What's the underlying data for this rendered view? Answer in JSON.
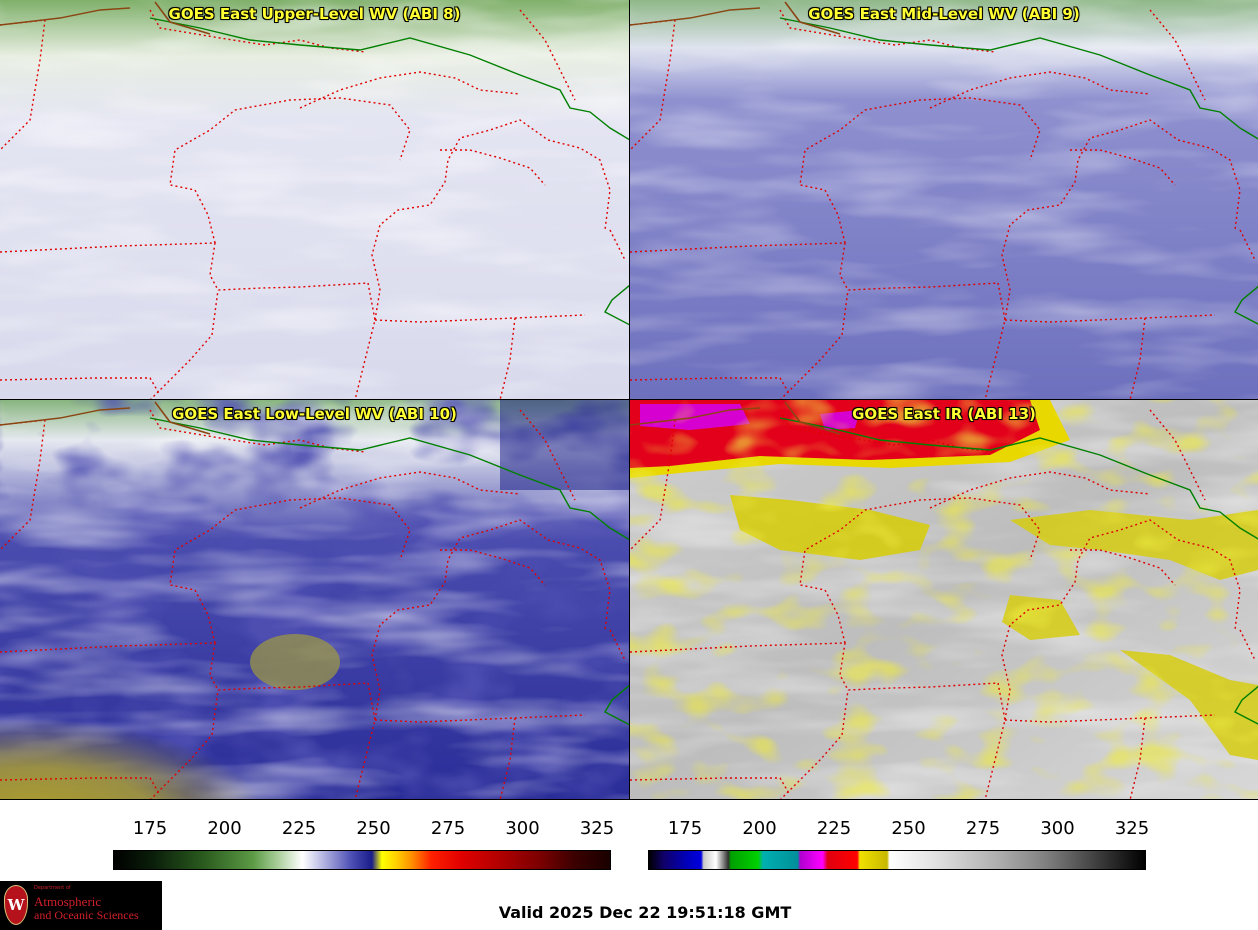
{
  "panels": [
    {
      "title": "GOES East Upper-Level WV (ABI 8)"
    },
    {
      "title": "GOES East Mid-Level WV (ABI 9)"
    },
    {
      "title": "GOES East Low-Level WV (ABI 10)"
    },
    {
      "title": "GOES East IR (ABI 13)"
    }
  ],
  "colorbars": {
    "wv": {
      "ticks": [
        "175",
        "200",
        "225",
        "250",
        "275",
        "300",
        "325"
      ]
    },
    "ir": {
      "ticks": [
        "175",
        "200",
        "225",
        "250",
        "275",
        "300",
        "325"
      ]
    }
  },
  "logo": {
    "line1": "Department of",
    "line2": "Atmospheric",
    "line3": "and Oceanic Sciences",
    "seal": "W"
  },
  "valid_time": "Valid 2025 Dec 22 19:51:18 GMT",
  "colors": {
    "state_border": "#e00000",
    "national_border": "#008000",
    "title_text": "#ffff33"
  }
}
